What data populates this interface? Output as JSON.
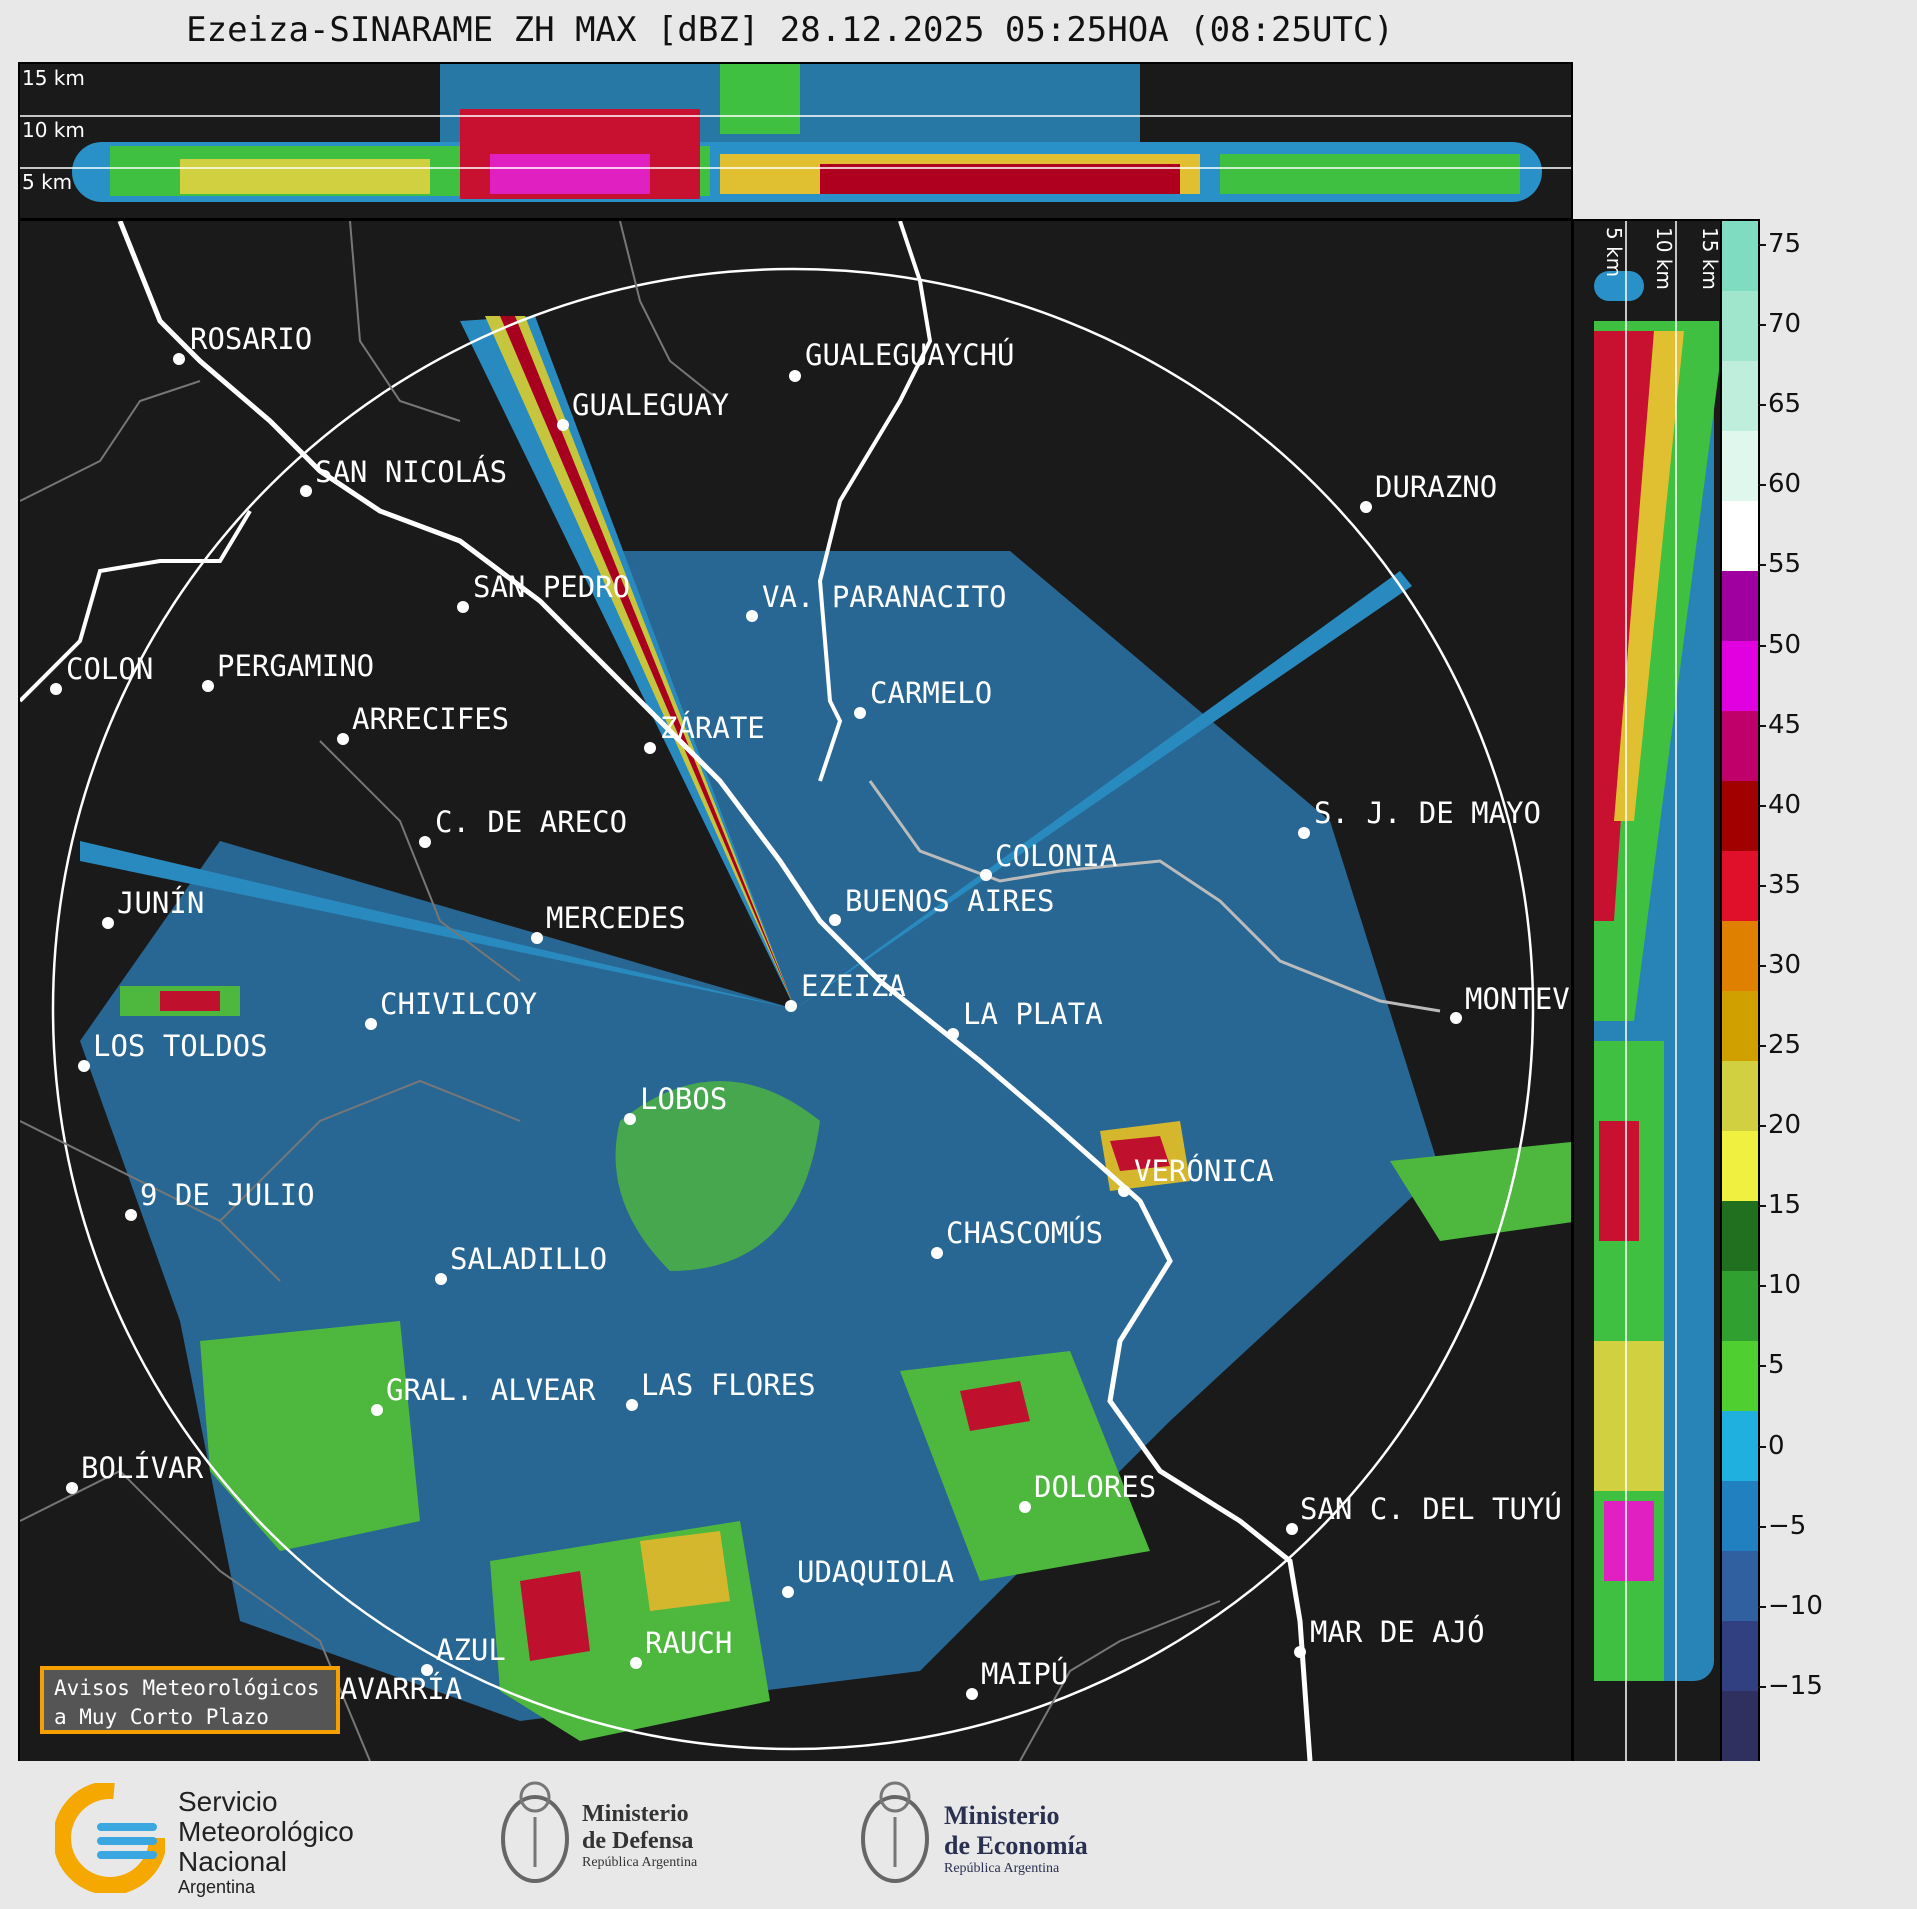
{
  "title": "Ezeiza-SINARAME ZH MAX [dBZ] 28.12.2025 05:25HOA (08:25UTC)",
  "altitude_labels_top": [
    "15 km",
    "10 km",
    "5 km"
  ],
  "altitude_labels_side": [
    "5 km",
    "10 km",
    "15 km"
  ],
  "colorbar": {
    "ticks": [
      "75",
      "70",
      "65",
      "60",
      "55",
      "50",
      "45",
      "40",
      "35",
      "30",
      "25",
      "20",
      "15",
      "10",
      "5",
      "0",
      "−5",
      "−10",
      "−15"
    ],
    "colors": [
      "#7fdcc0",
      "#9fe6cc",
      "#bfefdc",
      "#e0f7ee",
      "#ffffff",
      "#a000a0",
      "#e000e0",
      "#c0006a",
      "#a00000",
      "#e0102a",
      "#e08000",
      "#d0a000",
      "#d0d040",
      "#f0f040",
      "#207020",
      "#30a030",
      "#50d030",
      "#20b0e0",
      "#2080c0",
      "#3060a0",
      "#304080",
      "#303060"
    ]
  },
  "cities": [
    {
      "name": "ROSARIO"
    },
    {
      "name": "GUALEGUAYCHÚ"
    },
    {
      "name": "GUALEGUAY"
    },
    {
      "name": "SAN NICOLÁS"
    },
    {
      "name": "DURAZNO"
    },
    {
      "name": "SAN PEDRO"
    },
    {
      "name": "VA. PARANACITO"
    },
    {
      "name": "COLON"
    },
    {
      "name": "PERGAMINO"
    },
    {
      "name": "CARMELO"
    },
    {
      "name": "ARRECIFES"
    },
    {
      "name": "ZÁRATE"
    },
    {
      "name": "S. J. DE MAYO"
    },
    {
      "name": "C. DE ARECO"
    },
    {
      "name": "COLONIA"
    },
    {
      "name": "JUNÍN"
    },
    {
      "name": "BUENOS AIRES"
    },
    {
      "name": "MERCEDES"
    },
    {
      "name": "EZEIZA"
    },
    {
      "name": "MONTEV"
    },
    {
      "name": "CHIVILCOY"
    },
    {
      "name": "LA PLATA"
    },
    {
      "name": "LOS TOLDOS"
    },
    {
      "name": "LOBOS"
    },
    {
      "name": "VERÓNICA"
    },
    {
      "name": "9 DE JULIO"
    },
    {
      "name": "CHASCOMÚS"
    },
    {
      "name": "SALADILLO"
    },
    {
      "name": "GRAL. ALVEAR"
    },
    {
      "name": "LAS FLORES"
    },
    {
      "name": "BOLÍVAR"
    },
    {
      "name": "DOLORES"
    },
    {
      "name": "SAN C. DEL TUYÚ"
    },
    {
      "name": "UDAQUIOLA"
    },
    {
      "name": "MAR DE AJÓ"
    },
    {
      "name": "AZUL"
    },
    {
      "name": "RAUCH"
    },
    {
      "name": "OLAVARRÍA"
    },
    {
      "name": "MAIPÚ"
    }
  ],
  "avisos": {
    "line1": "Avisos Meteorológicos",
    "line2": "a Muy Corto Plazo"
  },
  "logos": {
    "smn": {
      "line1": "Servicio",
      "line2": "Meteorológico",
      "line3": "Nacional",
      "line4": "Argentina"
    },
    "defensa": {
      "line1": "Ministerio",
      "line2": "de Defensa",
      "line3": "República Argentina"
    },
    "economia": {
      "line1": "Ministerio",
      "line2": "de Economía",
      "line3": "República Argentina"
    }
  }
}
